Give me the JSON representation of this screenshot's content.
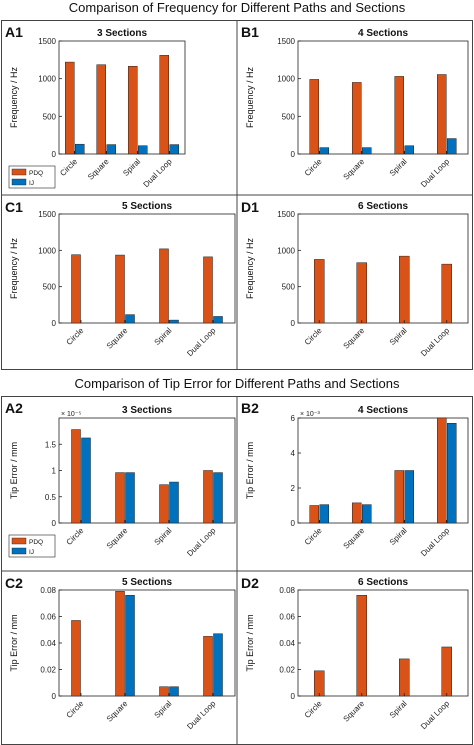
{
  "figure1": {
    "title": "Comparison of Frequency for Different Paths and Sections"
  },
  "figure2": {
    "title": "Comparison of Tip Error for Different Paths and Sections"
  },
  "colors": {
    "PDQ": "#D95319",
    "IJ": "#0072BD"
  },
  "chart_data": [
    {
      "id": "A1",
      "type": "bar",
      "title": "3 Sections",
      "categories": [
        "Circle",
        "Square",
        "Spiral",
        "Dual Loop"
      ],
      "series": [
        {
          "name": "PDQ",
          "values": [
            1220,
            1185,
            1165,
            1310
          ]
        },
        {
          "name": "IJ",
          "values": [
            130,
            125,
            110,
            125
          ]
        }
      ],
      "ylabel": "Frequency / Hz",
      "ylim": [
        0,
        1500
      ],
      "yticks": [
        0,
        500,
        1000,
        1500
      ],
      "legend": "bottom-left",
      "grid": false
    },
    {
      "id": "B1",
      "type": "bar",
      "title": "4 Sections",
      "categories": [
        "Circle",
        "Square",
        "Spiral",
        "Dual Loop"
      ],
      "series": [
        {
          "name": "PDQ",
          "values": [
            990,
            950,
            1030,
            1055
          ]
        },
        {
          "name": "IJ",
          "values": [
            85,
            85,
            110,
            205
          ]
        }
      ],
      "ylabel": "Frequency / Hz",
      "ylim": [
        0,
        1500
      ],
      "yticks": [
        0,
        500,
        1000,
        1500
      ],
      "grid": false
    },
    {
      "id": "C1",
      "type": "bar",
      "title": "5 Sections",
      "categories": [
        "Circle",
        "Square",
        "Spiral",
        "Dual Loop"
      ],
      "series": [
        {
          "name": "PDQ",
          "values": [
            940,
            935,
            1020,
            910
          ]
        },
        {
          "name": "IJ",
          "values": [
            0,
            115,
            40,
            90
          ]
        }
      ],
      "ylabel": "Frequency / Hz",
      "ylim": [
        0,
        1500
      ],
      "yticks": [
        0,
        500,
        1000,
        1500
      ],
      "grid": false
    },
    {
      "id": "D1",
      "type": "bar",
      "title": "6 Sections",
      "categories": [
        "Circle",
        "Square",
        "Spiral",
        "Dual Loop"
      ],
      "series": [
        {
          "name": "PDQ",
          "values": [
            875,
            830,
            920,
            810
          ]
        }
      ],
      "ylabel": "Frequency / Hz",
      "ylim": [
        0,
        1500
      ],
      "yticks": [
        0,
        500,
        1000,
        1500
      ],
      "grid": false
    },
    {
      "id": "A2",
      "type": "bar",
      "title": "3 Sections",
      "categories": [
        "Circle",
        "Square",
        "Spiral",
        "Dual Loop"
      ],
      "series": [
        {
          "name": "PDQ",
          "values": [
            1.78,
            0.96,
            0.73,
            1.0
          ]
        },
        {
          "name": "IJ",
          "values": [
            1.62,
            0.96,
            0.78,
            0.96
          ]
        }
      ],
      "scale_label": "× 10⁻⁵",
      "ylabel": "Tip Error / mm",
      "ylim": [
        0,
        2
      ],
      "yticks": [
        0,
        0.5,
        1,
        1.5
      ],
      "legend": "bottom-left",
      "grid": false
    },
    {
      "id": "B2",
      "type": "bar",
      "title": "4 Sections",
      "categories": [
        "Circle",
        "Square",
        "Spiral",
        "Dual Loop"
      ],
      "series": [
        {
          "name": "PDQ",
          "values": [
            1.0,
            1.15,
            3.0,
            6.1
          ]
        },
        {
          "name": "IJ",
          "values": [
            1.05,
            1.05,
            3.0,
            5.7
          ]
        }
      ],
      "scale_label": "× 10⁻³",
      "ylabel": "Tip Error / mm",
      "ylim": [
        0,
        6
      ],
      "yticks": [
        0,
        2,
        4,
        6
      ],
      "grid": false
    },
    {
      "id": "C2",
      "type": "bar",
      "title": "5 Sections",
      "categories": [
        "Circle",
        "Square",
        "Spiral",
        "Dual Loop"
      ],
      "series": [
        {
          "name": "PDQ",
          "values": [
            0.057,
            0.079,
            0.007,
            0.045
          ]
        },
        {
          "name": "IJ",
          "values": [
            0,
            0.076,
            0.007,
            0.047
          ]
        }
      ],
      "ylabel": "Tip Error / mm",
      "ylim": [
        0,
        0.08
      ],
      "yticks": [
        0,
        0.02,
        0.04,
        0.06,
        0.08
      ],
      "grid": false
    },
    {
      "id": "D2",
      "type": "bar",
      "title": "6 Sections",
      "categories": [
        "Circle",
        "Square",
        "Spiral",
        "Dual Loop"
      ],
      "series": [
        {
          "name": "PDQ",
          "values": [
            0.019,
            0.076,
            0.028,
            0.037
          ]
        }
      ],
      "ylabel": "Tip Error / mm",
      "ylim": [
        0,
        0.08
      ],
      "yticks": [
        0,
        0.02,
        0.04,
        0.06,
        0.08
      ],
      "grid": false
    }
  ]
}
